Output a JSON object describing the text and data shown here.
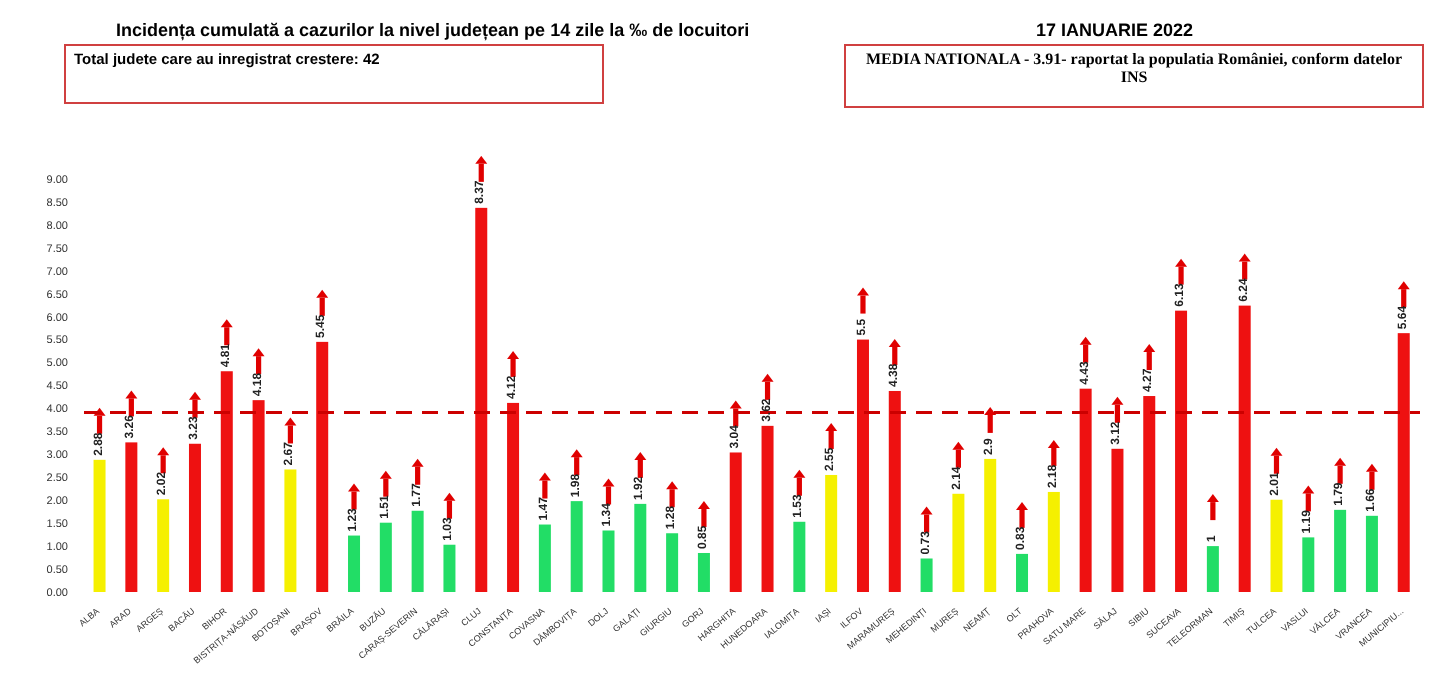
{
  "chart_data": {
    "type": "bar",
    "title": "Incidența cumulată a cazurilor la nivel județean pe 14 zile la ‰ de locuitori",
    "subtitle": "17 IANUARIE 2022",
    "annotations": [
      "Total judete care au inregistrat crestere: 42",
      "MEDIA NATIONALA - 3.91-  raportat la populatia României, conform datelor INS"
    ],
    "categories": [
      "ALBA",
      "ARAD",
      "ARGEȘ",
      "BACĂU",
      "BIHOR",
      "BISTRIȚA-NĂSĂUD",
      "BOTOȘANI",
      "BRAȘOV",
      "BRĂILA",
      "BUZĂU",
      "CARAȘ-SEVERIN",
      "CĂLĂRAȘI",
      "CLUJ",
      "CONSTANȚA",
      "COVASNA",
      "DÂMBOVIȚA",
      "DOLJ",
      "GALAȚI",
      "GIURGIU",
      "GORJ",
      "HARGHITA",
      "HUNEDOARA",
      "IALOMIȚA",
      "IAȘI",
      "ILFOV",
      "MARAMUREȘ",
      "MEHEDINȚI",
      "MUREȘ",
      "NEAMȚ",
      "OLT",
      "PRAHOVA",
      "SATU MARE",
      "SĂLAJ",
      "SIBIU",
      "SUCEAVA",
      "TELEORMAN",
      "TIMIȘ",
      "TULCEA",
      "VASLUI",
      "VÂLCEA",
      "VRANCEA",
      "MUNICIPIU..."
    ],
    "values": [
      2.88,
      3.26,
      2.02,
      3.23,
      4.81,
      4.18,
      2.67,
      5.45,
      1.23,
      1.51,
      1.77,
      1.03,
      8.37,
      4.12,
      1.47,
      1.98,
      1.34,
      1.92,
      1.28,
      0.85,
      3.04,
      3.62,
      1.53,
      2.55,
      5.5,
      4.38,
      0.73,
      2.14,
      2.9,
      0.83,
      2.18,
      4.43,
      3.12,
      4.27,
      6.13,
      1,
      6.24,
      2.01,
      1.19,
      1.79,
      1.66,
      5.64
    ],
    "colors": [
      "#f5f000",
      "#ee1111",
      "#f5f000",
      "#ee1111",
      "#ee1111",
      "#ee1111",
      "#f5f000",
      "#ee1111",
      "#22dd66",
      "#22dd66",
      "#22dd66",
      "#22dd66",
      "#ee1111",
      "#ee1111",
      "#22dd66",
      "#22dd66",
      "#22dd66",
      "#22dd66",
      "#22dd66",
      "#22dd66",
      "#ee1111",
      "#ee1111",
      "#22dd66",
      "#f5f000",
      "#ee1111",
      "#ee1111",
      "#22dd66",
      "#f5f000",
      "#f5f000",
      "#22dd66",
      "#f5f000",
      "#ee1111",
      "#ee1111",
      "#ee1111",
      "#ee1111",
      "#22dd66",
      "#ee1111",
      "#f5f000",
      "#22dd66",
      "#22dd66",
      "#22dd66",
      "#ee1111"
    ],
    "ylim": [
      0,
      9.5
    ],
    "yticks": [
      {
        "value": 0,
        "label": "0.00"
      },
      {
        "value": 0.5,
        "label": "0.50"
      },
      {
        "value": 1,
        "label": "1.00"
      },
      {
        "value": 1.5,
        "label": "1.50"
      },
      {
        "value": 2,
        "label": "2.00"
      },
      {
        "value": 2.5,
        "label": "2.50"
      },
      {
        "value": 3,
        "label": "3.00"
      },
      {
        "value": 3.5,
        "label": "3.50"
      },
      {
        "value": 4,
        "label": "4.00"
      },
      {
        "value": 4.5,
        "label": "4.50"
      },
      {
        "value": 5,
        "label": "5.00"
      },
      {
        "value": 5.5,
        "label": "5.50"
      },
      {
        "value": 6,
        "label": "6.00"
      },
      {
        "value": 6.5,
        "label": "6.50"
      },
      {
        "value": 7,
        "label": "7.00"
      },
      {
        "value": 7.5,
        "label": "7.50"
      },
      {
        "value": 8,
        "label": "8.00"
      },
      {
        "value": 8.5,
        "label": "8.50"
      },
      {
        "value": 9,
        "label": "9.00"
      }
    ],
    "ref_lines": [
      {
        "axis": "y",
        "value": 3.91,
        "label": null,
        "color": "#cc0000",
        "line_style": "dashed"
      }
    ],
    "data_labels": true
  }
}
